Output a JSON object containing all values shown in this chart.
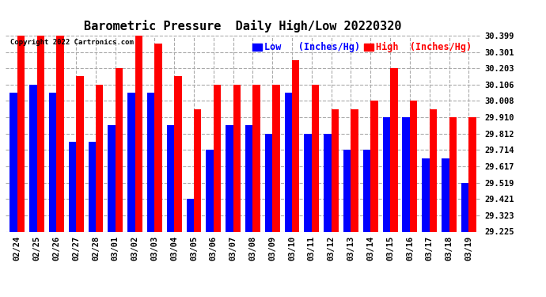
{
  "title": "Barometric Pressure  Daily High/Low 20220320",
  "copyright": "Copyright 2022 Cartronics.com",
  "ylabel_right_ticks": [
    29.225,
    29.323,
    29.421,
    29.519,
    29.617,
    29.714,
    29.812,
    29.91,
    30.008,
    30.106,
    30.203,
    30.301,
    30.399
  ],
  "ylabel_right_labels": [
    "29.225",
    "29.323",
    "29.421",
    "29.519",
    "29.617",
    "29.714",
    "29.812",
    "29.910",
    "30.008",
    "30.106",
    "30.203",
    "30.301",
    "30.399"
  ],
  "ylim": [
    29.225,
    30.399
  ],
  "dates": [
    "02/24",
    "02/25",
    "02/26",
    "02/27",
    "02/28",
    "03/01",
    "03/02",
    "03/03",
    "03/04",
    "03/05",
    "03/06",
    "03/07",
    "03/08",
    "03/09",
    "03/10",
    "03/11",
    "03/12",
    "03/13",
    "03/14",
    "03/15",
    "03/16",
    "03/17",
    "03/18",
    "03/19"
  ],
  "high": [
    30.399,
    30.399,
    30.399,
    30.155,
    30.106,
    30.203,
    30.399,
    30.35,
    30.155,
    29.96,
    30.106,
    30.106,
    30.106,
    30.106,
    30.25,
    30.106,
    29.96,
    29.96,
    30.008,
    30.203,
    30.008,
    29.96,
    29.91,
    29.91
  ],
  "low": [
    30.057,
    30.106,
    30.057,
    29.763,
    29.763,
    29.861,
    30.057,
    30.057,
    29.861,
    29.421,
    29.714,
    29.861,
    29.861,
    29.812,
    30.057,
    29.812,
    29.812,
    29.714,
    29.714,
    29.91,
    29.91,
    29.665,
    29.665,
    29.519
  ],
  "high_color": "#ff0000",
  "low_color": "#0000ff",
  "bg_color": "#ffffff",
  "plot_bg_color": "#ffffff",
  "grid_color": "#aaaaaa",
  "bar_width": 0.38,
  "title_fontsize": 11,
  "tick_fontsize": 7.5,
  "legend_fontsize": 8.5
}
